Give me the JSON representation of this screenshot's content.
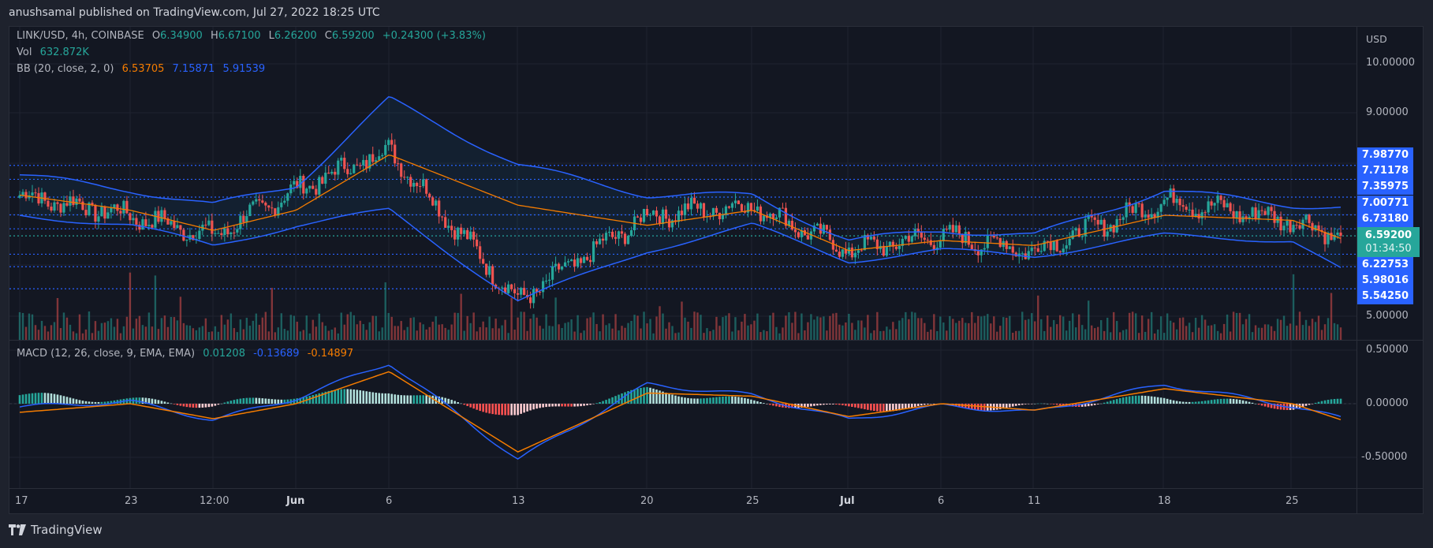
{
  "header": {
    "published": "anushsamal published on TradingView.com, Jul 27, 2022 18:25 UTC"
  },
  "symbol": {
    "title": "LINK/USD, 4h, COINBASE",
    "o_label": "O",
    "o": "6.34900",
    "h_label": "H",
    "h": "6.67100",
    "l_label": "L",
    "l": "6.26200",
    "c_label": "C",
    "c": "6.59200",
    "change": "+0.24300 (+3.83%)"
  },
  "volume": {
    "label": "Vol",
    "value": "632.872K"
  },
  "bb": {
    "label": "BB (20, close, 2, 0)",
    "basis": "6.53705",
    "upper": "7.15871",
    "lower": "5.91539"
  },
  "macd": {
    "label": "MACD (12, 26, close, 9, EMA, EMA)",
    "hist": "0.01208",
    "macd": "-0.13689",
    "signal": "-0.14897"
  },
  "price_axis": {
    "currency": "USD",
    "ticks": [
      "10.00000",
      "9.00000",
      "5.00000"
    ],
    "tags": [
      "7.98770",
      "7.71178",
      "7.35975",
      "7.00771",
      "6.73180",
      "6.22753",
      "5.98016",
      "5.54250"
    ],
    "current_price": "6.59200",
    "countdown": "01:34:50"
  },
  "macd_axis": {
    "ticks": [
      "0.50000",
      "0.00000",
      "-0.50000"
    ]
  },
  "time_axis": {
    "labels": [
      "17",
      "23",
      "12:00",
      "Jun",
      "6",
      "13",
      "20",
      "25",
      "Jul",
      "6",
      "11",
      "18",
      "25"
    ]
  },
  "branding": {
    "logo_text": "TradingView"
  },
  "colors": {
    "up": "#26a69a",
    "down": "#ef5350",
    "bb_band": "#2962ff",
    "bb_basis": "#f57c00",
    "macd_line": "#2962ff",
    "signal_line": "#f57c00",
    "background": "#131722"
  },
  "chart_data": {
    "type": "line",
    "title": "LINK/USD, 4h, COINBASE",
    "xlabel": "",
    "ylabel": "USD",
    "x": [
      "May 17",
      "May 23",
      "May 27 12:00",
      "Jun 1",
      "Jun 6",
      "Jun 13",
      "Jun 20",
      "Jun 25",
      "Jul 1",
      "Jul 6",
      "Jul 11",
      "Jul 18",
      "Jul 25",
      "Jul 27"
    ],
    "series": [
      {
        "name": "Close (approx)",
        "values": [
          7.4,
          7.0,
          6.6,
          7.5,
          8.3,
          5.3,
          7.0,
          7.2,
          6.3,
          6.6,
          6.3,
          7.3,
          6.9,
          6.59
        ]
      },
      {
        "name": "BB upper (approx)",
        "values": [
          7.8,
          7.5,
          7.2,
          7.6,
          9.3,
          8.0,
          7.4,
          7.4,
          6.5,
          6.7,
          6.6,
          7.5,
          7.2,
          7.16
        ]
      },
      {
        "name": "BB basis (approx)",
        "values": [
          7.4,
          7.1,
          6.7,
          7.1,
          8.2,
          7.2,
          6.8,
          7.1,
          6.3,
          6.5,
          6.4,
          7.0,
          6.9,
          6.54
        ]
      },
      {
        "name": "BB lower (approx)",
        "values": [
          7.0,
          6.8,
          6.4,
          6.8,
          7.1,
          5.3,
          6.3,
          6.8,
          6.1,
          6.3,
          6.2,
          6.6,
          6.5,
          5.92
        ]
      },
      {
        "name": "MACD (approx)",
        "values": [
          -0.03,
          0.02,
          -0.15,
          0.05,
          0.38,
          -0.52,
          0.18,
          0.08,
          -0.15,
          -0.02,
          -0.08,
          0.18,
          -0.02,
          -0.137
        ]
      },
      {
        "name": "Signal (approx)",
        "values": [
          -0.08,
          0.0,
          -0.14,
          0.0,
          0.3,
          -0.45,
          0.1,
          0.07,
          -0.12,
          0.0,
          -0.06,
          0.14,
          0.0,
          -0.149
        ]
      }
    ],
    "price_range": [
      4.7,
      10.6
    ],
    "macd_range": [
      -0.6,
      0.55
    ],
    "horizontal_levels": [
      7.9877,
      7.71178,
      7.35975,
      7.00771,
      6.7318,
      6.22753,
      5.98016,
      5.5425
    ],
    "last": {
      "open": 6.349,
      "high": 6.671,
      "low": 6.262,
      "close": 6.592,
      "volume": "632.872K"
    },
    "grid": true
  }
}
